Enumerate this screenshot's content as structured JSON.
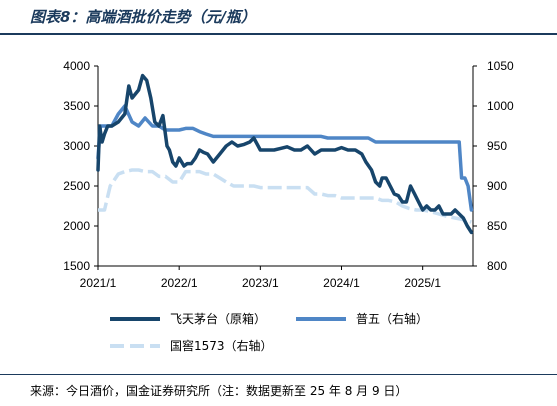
{
  "header": {
    "title": "图表8：高端酒批价走势（元/瓶）"
  },
  "footer": {
    "source": "来源：今日酒价，国金证券研究所（注：数据更新至 25 年 8 月 9 日）"
  },
  "chart_data": {
    "type": "line",
    "title": "图表8：高端酒批价走势（元/瓶）",
    "xlabel": "",
    "ylabel": "",
    "x_ticks": [
      "2021/1",
      "2022/1",
      "2023/1",
      "2024/1",
      "2025/1"
    ],
    "y_left": {
      "min": 1500,
      "max": 4000,
      "ticks": [
        1500,
        2000,
        2500,
        3000,
        3500,
        4000
      ]
    },
    "y_right": {
      "min": 800,
      "max": 1050,
      "ticks": [
        800,
        850,
        900,
        950,
        1000,
        1050
      ]
    },
    "legend_position": "bottom",
    "grid": false,
    "series": [
      {
        "name": "飞天茅台（原箱）",
        "axis": "left",
        "color": "#17456b",
        "style": "solid",
        "x": [
          2021.0,
          2021.02,
          2021.05,
          2021.08,
          2021.12,
          2021.17,
          2021.25,
          2021.33,
          2021.38,
          2021.42,
          2021.5,
          2021.55,
          2021.6,
          2021.65,
          2021.7,
          2021.75,
          2021.8,
          2021.85,
          2021.88,
          2021.92,
          2021.96,
          2022.0,
          2022.06,
          2022.1,
          2022.15,
          2022.2,
          2022.25,
          2022.3,
          2022.35,
          2022.42,
          2022.5,
          2022.58,
          2022.65,
          2022.72,
          2022.8,
          2022.87,
          2022.92,
          2023.0,
          2023.08,
          2023.17,
          2023.25,
          2023.33,
          2023.42,
          2023.5,
          2023.58,
          2023.67,
          2023.75,
          2023.83,
          2023.92,
          2024.0,
          2024.08,
          2024.17,
          2024.25,
          2024.3,
          2024.37,
          2024.42,
          2024.47,
          2024.5,
          2024.55,
          2024.6,
          2024.65,
          2024.7,
          2024.75,
          2024.8,
          2024.85,
          2024.9,
          2024.95,
          2025.0,
          2025.05,
          2025.1,
          2025.15,
          2025.2,
          2025.25,
          2025.3,
          2025.35,
          2025.4,
          2025.45,
          2025.5,
          2025.55,
          2025.6
        ],
        "values": [
          2700,
          3250,
          3050,
          3150,
          3250,
          3250,
          3300,
          3400,
          3750,
          3600,
          3700,
          3880,
          3820,
          3600,
          3300,
          3250,
          3380,
          3000,
          2950,
          2800,
          2750,
          2850,
          2750,
          2780,
          2780,
          2850,
          2950,
          2920,
          2900,
          2800,
          2900,
          3000,
          3050,
          3000,
          3020,
          3050,
          3100,
          2950,
          2950,
          2950,
          2970,
          2990,
          2950,
          2950,
          3000,
          2900,
          2950,
          2950,
          2950,
          2980,
          2950,
          2950,
          2900,
          2800,
          2700,
          2550,
          2500,
          2600,
          2600,
          2500,
          2400,
          2380,
          2300,
          2300,
          2500,
          2400,
          2300,
          2200,
          2250,
          2200,
          2200,
          2250,
          2150,
          2150,
          2150,
          2200,
          2150,
          2100,
          2000,
          1920
        ]
      },
      {
        "name": "普五（右轴）",
        "axis": "right",
        "color": "#4f86c6",
        "style": "solid",
        "x": [
          2021.0,
          2021.03,
          2021.08,
          2021.17,
          2021.25,
          2021.33,
          2021.42,
          2021.5,
          2021.58,
          2021.67,
          2021.75,
          2021.83,
          2021.92,
          2022.0,
          2022.08,
          2022.17,
          2022.25,
          2022.33,
          2022.42,
          2022.5,
          2022.58,
          2022.67,
          2022.75,
          2022.83,
          2022.92,
          2023.0,
          2023.08,
          2023.17,
          2023.25,
          2023.33,
          2023.42,
          2023.5,
          2023.58,
          2023.67,
          2023.75,
          2023.83,
          2023.92,
          2024.0,
          2024.08,
          2024.17,
          2024.25,
          2024.33,
          2024.42,
          2024.5,
          2024.58,
          2024.67,
          2024.75,
          2024.83,
          2024.92,
          2025.0,
          2025.1,
          2025.2,
          2025.3,
          2025.4,
          2025.45,
          2025.48,
          2025.52,
          2025.56,
          2025.6
        ],
        "values": [
          935,
          975,
          975,
          975,
          990,
          1000,
          980,
          975,
          985,
          975,
          975,
          970,
          970,
          970,
          972,
          972,
          968,
          965,
          962,
          962,
          962,
          962,
          962,
          962,
          962,
          962,
          962,
          962,
          962,
          962,
          962,
          962,
          962,
          962,
          962,
          960,
          960,
          960,
          960,
          960,
          960,
          960,
          955,
          955,
          955,
          955,
          955,
          955,
          955,
          955,
          955,
          955,
          955,
          955,
          955,
          910,
          910,
          900,
          870
        ]
      },
      {
        "name": "国窖1573（右轴）",
        "axis": "right",
        "color": "#c9dff2",
        "style": "dashed",
        "x": [
          2021.0,
          2021.08,
          2021.15,
          2021.25,
          2021.33,
          2021.42,
          2021.5,
          2021.58,
          2021.67,
          2021.75,
          2021.83,
          2021.92,
          2022.0,
          2022.08,
          2022.17,
          2022.25,
          2022.33,
          2022.42,
          2022.5,
          2022.58,
          2022.67,
          2022.75,
          2022.83,
          2022.92,
          2023.0,
          2023.08,
          2023.17,
          2023.25,
          2023.33,
          2023.42,
          2023.5,
          2023.58,
          2023.67,
          2023.75,
          2023.83,
          2023.92,
          2024.0,
          2024.08,
          2024.17,
          2024.25,
          2024.33,
          2024.42,
          2024.5,
          2024.58,
          2024.67,
          2024.75,
          2024.83,
          2024.92,
          2025.0,
          2025.1,
          2025.2,
          2025.3,
          2025.4,
          2025.5,
          2025.6
        ],
        "values": [
          870,
          870,
          900,
          915,
          918,
          920,
          920,
          918,
          918,
          912,
          912,
          905,
          905,
          918,
          918,
          918,
          915,
          915,
          910,
          905,
          900,
          900,
          900,
          900,
          898,
          898,
          898,
          898,
          898,
          898,
          898,
          898,
          890,
          890,
          888,
          888,
          885,
          885,
          885,
          885,
          885,
          885,
          882,
          882,
          880,
          875,
          872,
          870,
          870,
          868,
          865,
          862,
          860,
          858,
          855
        ]
      }
    ]
  }
}
